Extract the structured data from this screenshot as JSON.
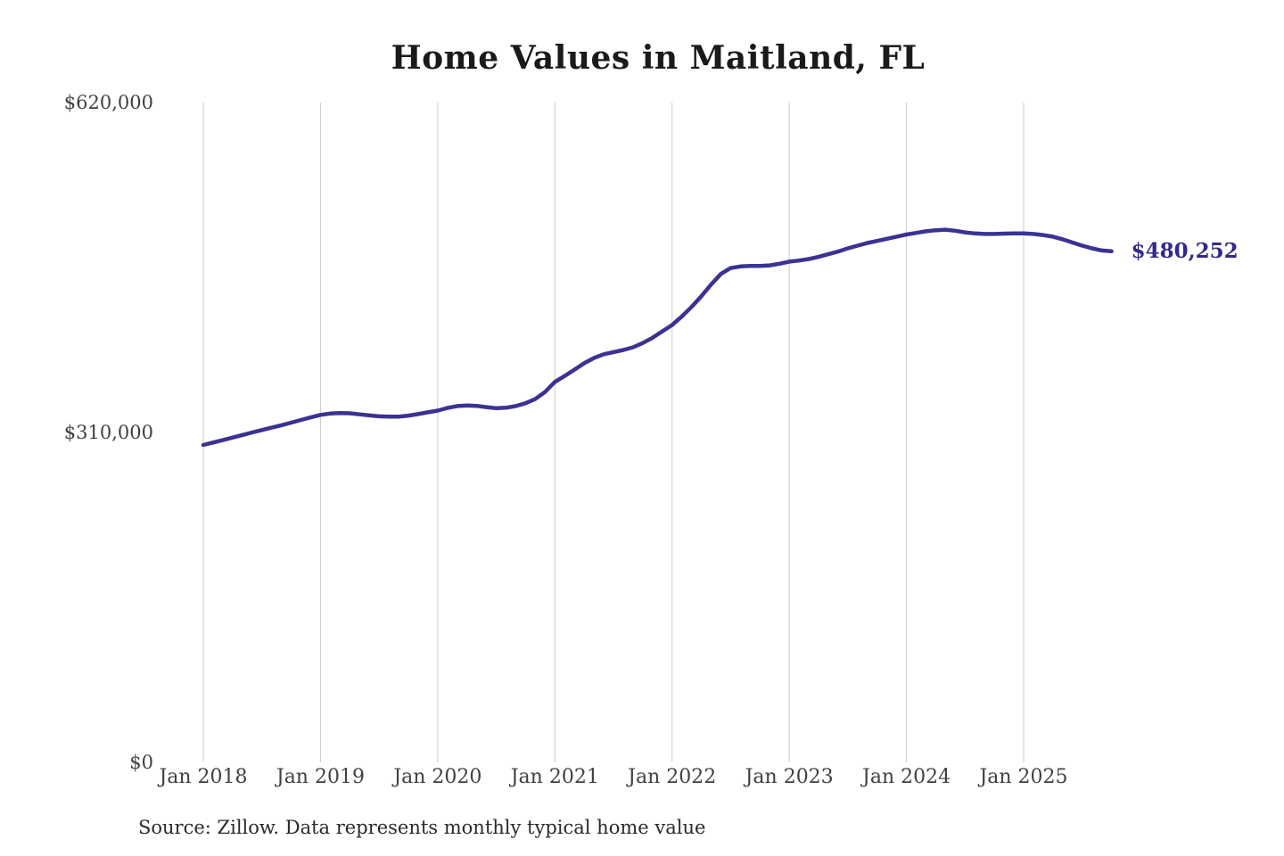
{
  "title": "Home Values in Maitland, FL",
  "source_note": "Source: Zillow. Data represents monthly typical home value",
  "colors": {
    "line": "#3b3294",
    "last_value_label": "#312a86",
    "gridline": "#cccccc",
    "title_text": "#1a1a1a",
    "axis_text": "#414141",
    "source_text": "#2a2a2a",
    "background": "#ffffff"
  },
  "chart_data": {
    "type": "line",
    "title": "Home Values in Maitland, FL",
    "xlabel": "",
    "ylabel": "",
    "ylim": [
      0,
      620000
    ],
    "grid": "vertical-gridlines-only",
    "legend": false,
    "x_unit": "month",
    "x_range": "Jan 2018 to Oct 2025",
    "x_tick_labels": [
      "Jan 2018",
      "Jan 2019",
      "Jan 2020",
      "Jan 2021",
      "Jan 2022",
      "Jan 2023",
      "Jan 2024",
      "Jan 2025"
    ],
    "x_tick_month_index": [
      0,
      12,
      24,
      36,
      48,
      60,
      72,
      84
    ],
    "y_ticks": [
      0,
      310000,
      620000
    ],
    "y_tick_labels": [
      "$0",
      "$310,000",
      "$620,000"
    ],
    "last_value": 480252,
    "last_value_label": "$480,252",
    "series": [
      {
        "name": "Monthly typical home value",
        "start": "2018-01",
        "values": [
          298300,
          300500,
          302800,
          305200,
          307600,
          310000,
          312300,
          314500,
          316800,
          319200,
          321700,
          324200,
          326500,
          327800,
          328200,
          328000,
          327000,
          326000,
          325200,
          324800,
          324900,
          325800,
          327300,
          328900,
          330500,
          333000,
          334800,
          335400,
          335000,
          333800,
          332800,
          333200,
          334800,
          337500,
          341500,
          348000,
          357500,
          363000,
          369000,
          375000,
          380000,
          383500,
          385500,
          387500,
          390000,
          394000,
          399000,
          405000,
          411000,
          419000,
          428000,
          438000,
          449000,
          459000,
          464500,
          466000,
          466500,
          466500,
          467000,
          468500,
          470500,
          471500,
          473000,
          475000,
          477500,
          480000,
          483000,
          485500,
          488000,
          490000,
          492000,
          494000,
          496000,
          497500,
          499000,
          500000,
          500500,
          499500,
          498000,
          497000,
          496500,
          496500,
          496800,
          497000,
          497000,
          496500,
          495500,
          494000,
          491500,
          488500,
          485500,
          483000,
          481000,
          480252
        ]
      }
    ]
  }
}
